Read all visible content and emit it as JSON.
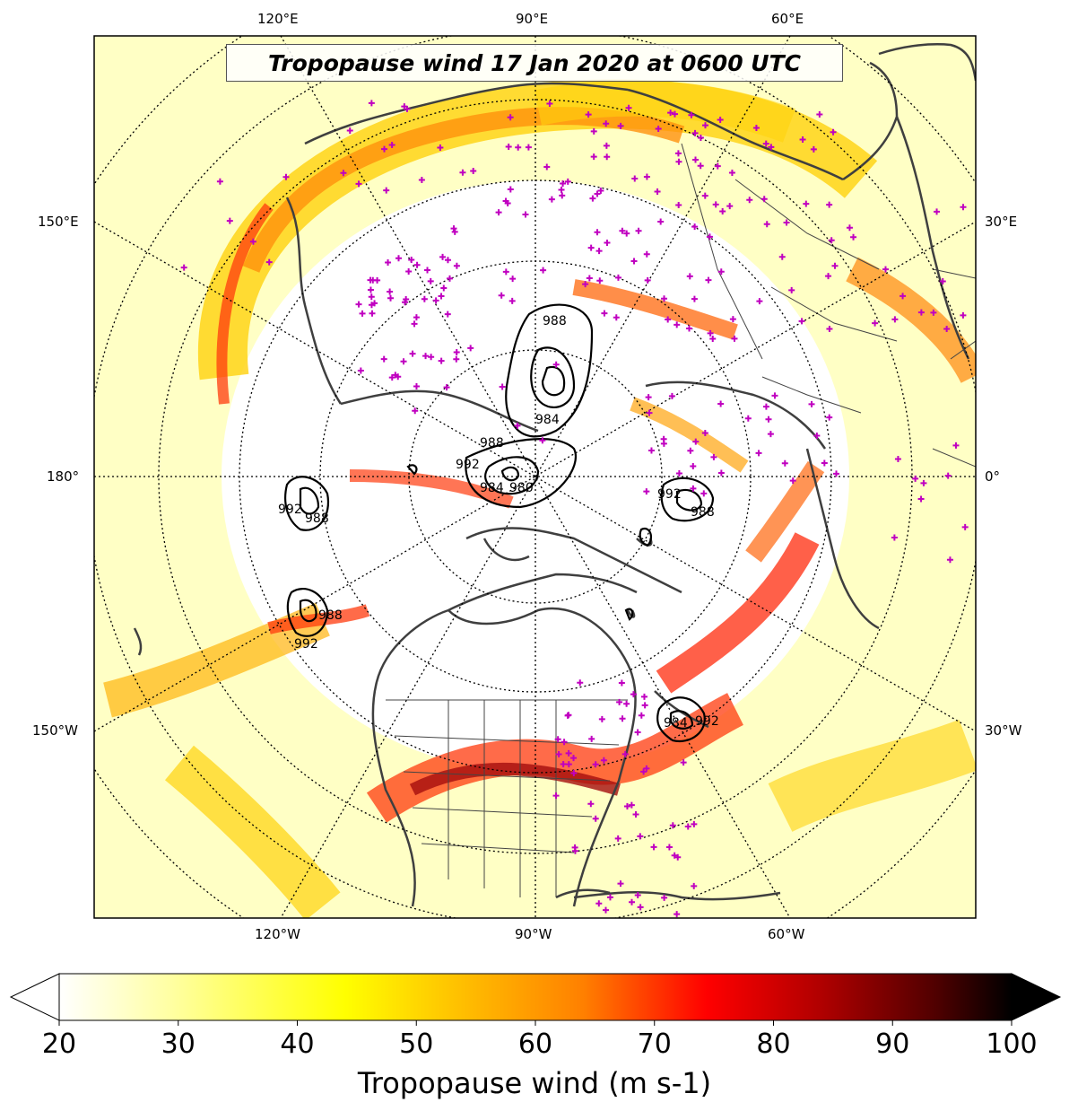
{
  "title": "Tropopause wind 17 Jan 2020 at 0600 UTC",
  "map": {
    "top_labels": [
      "120°E",
      "90°E",
      "60°E"
    ],
    "bottom_labels": [
      "120°W",
      "90°W",
      "60°W"
    ],
    "left_labels": [
      "150°E",
      "180°",
      "150°W"
    ],
    "right_labels": [
      "30°E",
      "0°",
      "30°W"
    ],
    "contour_labels": [
      "988",
      "992",
      "984",
      "988",
      "992",
      "988",
      "984",
      "980",
      "992",
      "988",
      "992",
      "988",
      "992",
      "988",
      "984",
      "992"
    ],
    "colors": {
      "coast": "#3f3f3f",
      "stations": "#c000c0",
      "contours": "#000000",
      "grid": "#000000"
    }
  },
  "colorbar": {
    "label": "Tropopause wind (m s-1)",
    "ticks": [
      "20",
      "30",
      "40",
      "50",
      "60",
      "70",
      "80",
      "90",
      "100"
    ],
    "range": [
      20,
      100
    ],
    "colormap": [
      "#ffffff",
      "#ffff80",
      "#ffff00",
      "#ffc000",
      "#ff8000",
      "#ff0000",
      "#c00000",
      "#600000",
      "#000000"
    ]
  }
}
